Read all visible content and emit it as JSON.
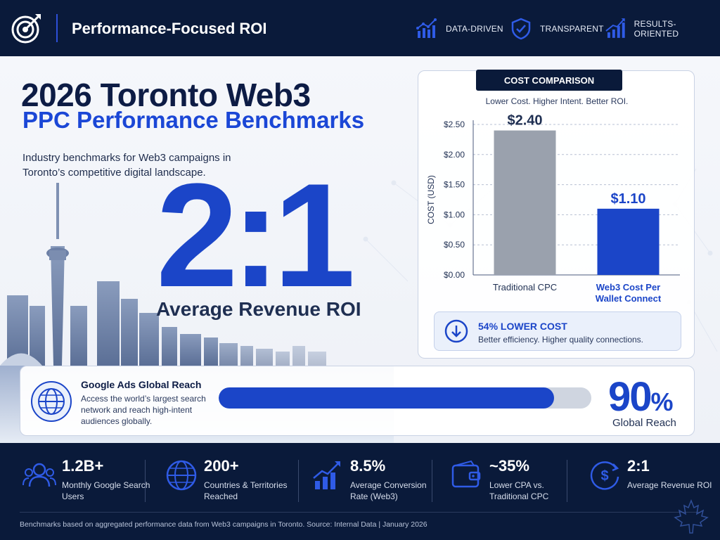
{
  "header": {
    "title": "Performance-Focused ROI",
    "pills": [
      {
        "icon": "bar-trend-icon",
        "label": "DATA-DRIVEN"
      },
      {
        "icon": "shield-check-icon",
        "label": "TRANSPARENT"
      },
      {
        "icon": "growth-chart-icon",
        "label": "RESULTS-ORIENTED"
      }
    ]
  },
  "hero": {
    "title": "2026 Toronto Web3",
    "subtitle": "PPC Performance Benchmarks",
    "description": "Industry benchmarks for Web3 campaigns in Toronto’s competitive digital landscape.",
    "ratio": "2:1",
    "ratio_label": "Average Revenue ROI"
  },
  "cost_comparison": {
    "badge": "COST COMPARISON",
    "tagline": "Lower Cost. Higher Intent. Better ROI.",
    "callout_title": "54% LOWER COST",
    "callout_text": "Better efficiency. Higher quality connections."
  },
  "chart_data": {
    "type": "bar",
    "title": "COST COMPARISON",
    "ylabel": "COST (USD)",
    "xlabel": "",
    "categories": [
      "Traditional CPC",
      "Web3 Cost Per Wallet Connect"
    ],
    "values": [
      2.4,
      1.1
    ],
    "value_labels": [
      "$2.40",
      "$1.10"
    ],
    "ylim": [
      0,
      2.5
    ],
    "yticks": [
      "$0.00",
      "$0.50",
      "$1.00",
      "$1.50",
      "$2.00",
      "$2.50"
    ],
    "grid": true,
    "colors": [
      "#9aa1ad",
      "#1b45c8"
    ]
  },
  "reach": {
    "title": "Google Ads Global Reach",
    "text": "Access the world’s largest search network and reach high-intent audiences globally.",
    "value": "90",
    "unit": "%",
    "label": "Global Reach",
    "fill_fraction": 0.9
  },
  "stats": [
    {
      "icon": "users-icon",
      "value": "1.2B+",
      "label": "Monthly Google Search Users"
    },
    {
      "icon": "globe-icon",
      "value": "200+",
      "label": "Countries & Territories Reached"
    },
    {
      "icon": "growth-chart-icon",
      "value": "8.5%",
      "label": "Average Conversion Rate (Web3)"
    },
    {
      "icon": "wallet-icon",
      "value": "~35%",
      "label": "Lower CPA vs. Traditional CPC"
    },
    {
      "icon": "dollar-cycle-icon",
      "value": "2:1",
      "label": "Average Revenue ROI"
    }
  ],
  "footer": "Benchmarks based on aggregated performance data from Web3 campaigns in Toronto. Source: Internal Data  |  January 2026",
  "colors": {
    "navy": "#0a1a3a",
    "accent_blue": "#1b45c8",
    "gray_bar": "#9aa1ad"
  }
}
